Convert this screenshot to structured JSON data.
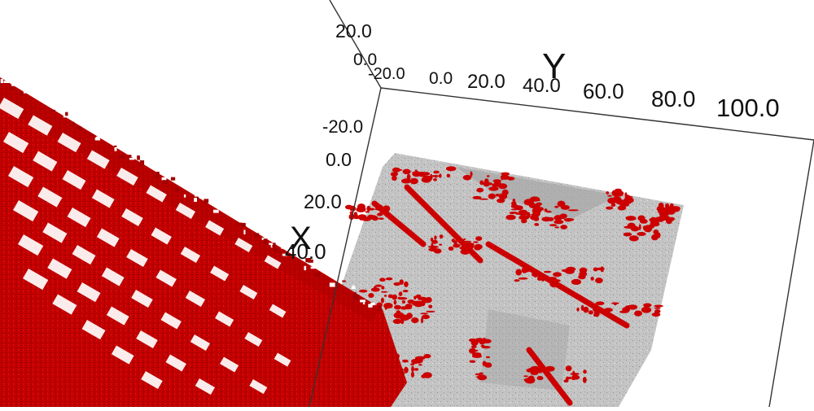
{
  "viewer": {
    "axes": {
      "y": {
        "label": "Y",
        "ticks": [
          "-20.0",
          "0.0",
          "20.0",
          "40.0",
          "60.0",
          "80.0",
          "100.0"
        ]
      },
      "x": {
        "label": "X",
        "ticks": [
          "-20.0",
          "0.0",
          "20.0",
          "40.0"
        ]
      },
      "z": {
        "ticks": [
          "20.0",
          "0.0"
        ]
      }
    },
    "colors": {
      "background": "#ffffff",
      "point_cloud_red": "#cc0000",
      "ground_surface": "#c0c0c0",
      "axis_lines": "#333333"
    }
  }
}
